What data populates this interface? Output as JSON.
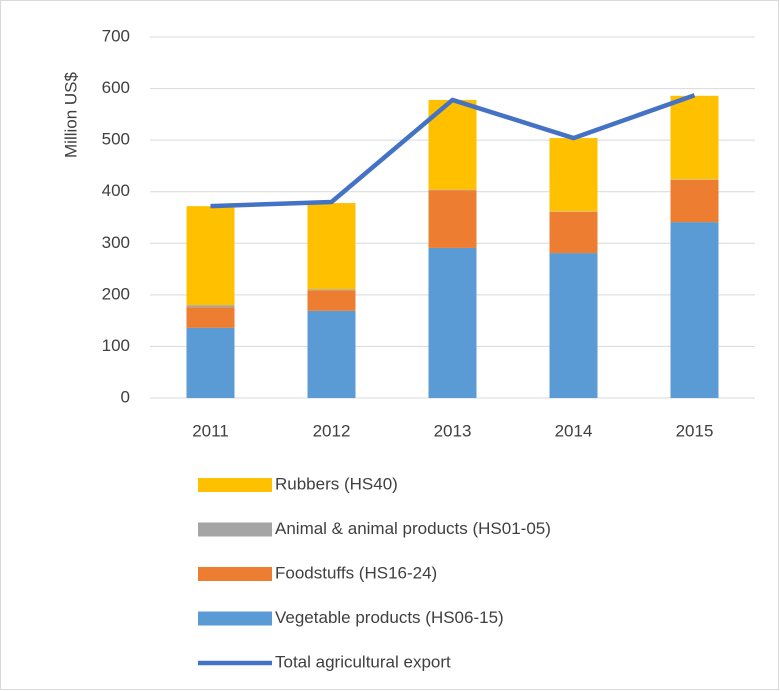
{
  "chart_data": {
    "type": "stacked-bar-line",
    "y_label": "Million US$",
    "categories": [
      "2011",
      "2012",
      "2013",
      "2014",
      "2015"
    ],
    "ylim": [
      0,
      700
    ],
    "yticks": [
      0,
      100,
      200,
      300,
      400,
      500,
      600,
      700
    ],
    "grid": true,
    "series": [
      {
        "name": "Vegetable products (HS06-15)",
        "color": "#5b9bd5",
        "kind": "bar",
        "values": [
          136,
          169,
          291,
          281,
          341
        ]
      },
      {
        "name": "Foodstuffs (HS16-24)",
        "color": "#ed7d31",
        "kind": "bar",
        "values": [
          40,
          40,
          112,
          80,
          82
        ]
      },
      {
        "name": "Animal & animal products (HS01-05)",
        "color": "#a5a5a5",
        "kind": "bar",
        "values": [
          4,
          2,
          1,
          1,
          1
        ]
      },
      {
        "name": "Rubbers (HS40)",
        "color": "#ffc000",
        "kind": "bar",
        "values": [
          192,
          167,
          174,
          142,
          162
        ]
      },
      {
        "name": "Total agricultural export",
        "color": "#4472c4",
        "kind": "line",
        "values": [
          372,
          380,
          578,
          504,
          587
        ]
      }
    ]
  }
}
